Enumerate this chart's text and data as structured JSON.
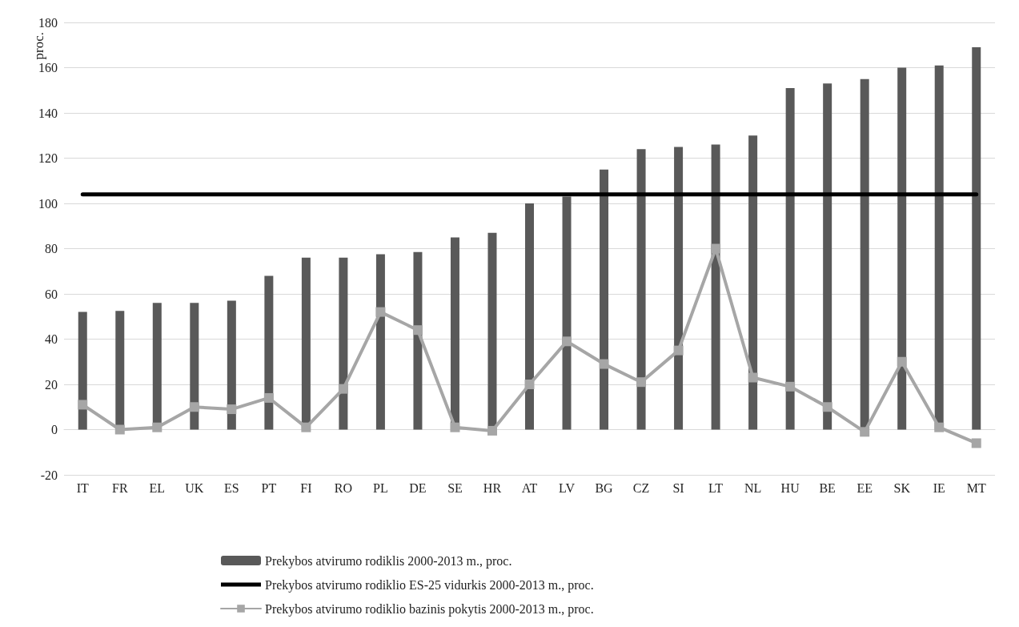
{
  "chart_data": {
    "type": "bar",
    "ylabel": "proc.",
    "categories": [
      "IT",
      "FR",
      "EL",
      "UK",
      "ES",
      "PT",
      "FI",
      "RO",
      "PL",
      "DE",
      "SE",
      "HR",
      "AT",
      "LV",
      "BG",
      "CZ",
      "SI",
      "LT",
      "NL",
      "HU",
      "BE",
      "EE",
      "SK",
      "IE",
      "MT"
    ],
    "series": [
      {
        "name": "Prekybos atvirumo rodiklis 2000-2013 m., proc.",
        "color": "#595959",
        "values": [
          52,
          52.5,
          56,
          56,
          57,
          68,
          76,
          76,
          77.5,
          78.5,
          85,
          87,
          100,
          103,
          115,
          124,
          125,
          126,
          130,
          151,
          153,
          155,
          160,
          161,
          169
        ]
      },
      {
        "name": "Prekybos atvirumo rodiklio ES-25 vidurkis 2000-2013 m., proc.",
        "type": "line",
        "color": "#000000",
        "marker": "none",
        "values": [
          104,
          104,
          104,
          104,
          104,
          104,
          104,
          104,
          104,
          104,
          104,
          104,
          104,
          104,
          104,
          104,
          104,
          104,
          104,
          104,
          104,
          104,
          104,
          104,
          104
        ]
      },
      {
        "name": "Prekybos atvirumo rodiklio bazinis pokytis 2000-2013 m., proc.",
        "type": "line",
        "color": "#a6a6a6",
        "marker": "square",
        "values": [
          11,
          0,
          1,
          10,
          9,
          14,
          1,
          18,
          52,
          44,
          1,
          -0.5,
          20,
          39,
          29,
          21,
          35,
          80,
          23,
          19,
          10,
          -1,
          30,
          1,
          -6
        ]
      }
    ],
    "ylim": [
      -20,
      180
    ],
    "yticks": [
      -20,
      0,
      20,
      40,
      60,
      80,
      100,
      120,
      140,
      160,
      180
    ],
    "grid": "y",
    "legend": "bottom",
    "line_style": "solid"
  }
}
